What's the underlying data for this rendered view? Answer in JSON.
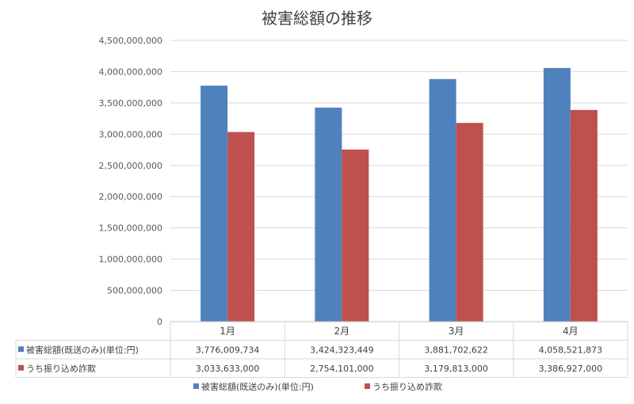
{
  "chart_data": {
    "type": "bar",
    "title": "被害総額の推移",
    "categories": [
      "1月",
      "2月",
      "3月",
      "4月"
    ],
    "series": [
      {
        "name": "被害総額(既送のみ)(単位:円)",
        "color": "#4F81BD",
        "values": [
          3776009734,
          3424323449,
          3881702622,
          4058521873
        ],
        "display": [
          "3,776,009,734",
          "3,424,323,449",
          "3,881,702,622",
          "4,058,521,873"
        ]
      },
      {
        "name": "うち振り込め詐欺",
        "color": "#C0504D",
        "values": [
          3033633000,
          2754101000,
          3179813000,
          3386927000
        ],
        "display": [
          "3,033,633,000",
          "2,754,101,000",
          "3,179,813,000",
          "3,386,927,000"
        ]
      }
    ],
    "ylim": [
      0,
      4500000000
    ],
    "yticks": [
      "0",
      "500,000,000",
      "1,000,000,000",
      "1,500,000,000",
      "2,000,000,000",
      "2,500,000,000",
      "3,000,000,000",
      "3,500,000,000",
      "4,000,000,000",
      "4,500,000,000"
    ],
    "grid": true,
    "data_table": true,
    "legend_position": "bottom"
  }
}
